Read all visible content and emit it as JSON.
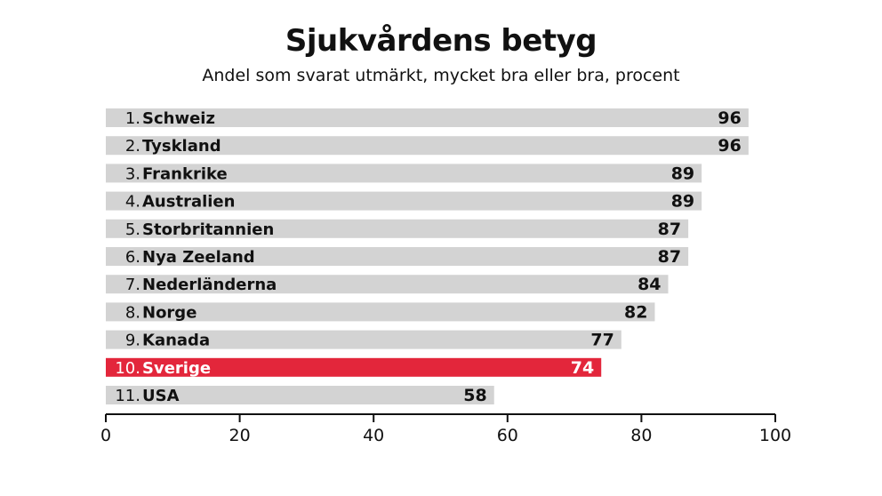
{
  "chart_data": {
    "type": "bar",
    "orientation": "horizontal",
    "title": "Sjukvårdens betyg",
    "subtitle": "Andel som svarat utmärkt, mycket bra eller bra, procent",
    "ranks": [
      "1.",
      "2.",
      "3.",
      "4.",
      "5.",
      "6.",
      "7.",
      "8.",
      "9.",
      "10.",
      "11."
    ],
    "categories": [
      "Schweiz",
      "Tyskland",
      "Frankrike",
      "Australien",
      "Storbritannien",
      "Nya Zeeland",
      "Nederländerna",
      "Norge",
      "Kanada",
      "Sverige",
      "USA"
    ],
    "values": [
      96,
      96,
      89,
      89,
      87,
      87,
      84,
      82,
      77,
      74,
      58
    ],
    "highlight": "Sverige",
    "xlim": [
      0,
      100
    ],
    "xticks": [
      0,
      20,
      40,
      60,
      80,
      100
    ],
    "colors": {
      "bar": "#d3d3d3",
      "highlight": "#e3263b",
      "axis": "#111111"
    },
    "grid": false,
    "legend": "none"
  }
}
